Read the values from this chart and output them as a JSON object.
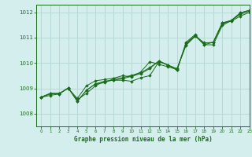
{
  "xlabel": "Graphe pression niveau de la mer (hPa)",
  "xlim": [
    -0.5,
    23
  ],
  "ylim": [
    1007.5,
    1012.3
  ],
  "yticks": [
    1008,
    1009,
    1010,
    1011,
    1012
  ],
  "xticks": [
    0,
    1,
    2,
    3,
    4,
    5,
    6,
    7,
    8,
    9,
    10,
    11,
    12,
    13,
    14,
    15,
    16,
    17,
    18,
    19,
    20,
    21,
    22,
    23
  ],
  "background_color": "#d4eeed",
  "grid_color": "#b8d8d5",
  "line_color": "#1a6b1a",
  "series": [
    [
      1008.65,
      1008.8,
      1008.8,
      1009.0,
      1008.55,
      1008.8,
      1009.1,
      1009.28,
      1009.32,
      1009.32,
      1009.28,
      1009.42,
      1009.5,
      1010.05,
      1009.92,
      1009.78,
      1010.7,
      1011.05,
      1010.8,
      1010.8,
      1011.55,
      1011.65,
      1011.85,
      1012.0
    ],
    [
      1008.65,
      1008.8,
      1008.8,
      1009.0,
      1008.6,
      1009.1,
      1009.3,
      1009.35,
      1009.4,
      1009.5,
      1009.45,
      1009.65,
      1010.05,
      1009.95,
      1009.85,
      1009.75,
      1010.72,
      1011.08,
      1010.72,
      1010.72,
      1011.48,
      1011.68,
      1011.92,
      1012.05
    ],
    [
      1008.65,
      1008.72,
      1008.78,
      1009.02,
      1008.5,
      1008.92,
      1009.18,
      1009.28,
      1009.32,
      1009.38,
      1009.48,
      1009.58,
      1009.78,
      1010.08,
      1009.92,
      1009.72,
      1010.78,
      1011.08,
      1010.78,
      1010.82,
      1011.58,
      1011.68,
      1011.98,
      1012.08
    ],
    [
      1008.65,
      1008.78,
      1008.78,
      1009.02,
      1008.48,
      1008.92,
      1009.18,
      1009.22,
      1009.38,
      1009.42,
      1009.52,
      1009.62,
      1009.82,
      1010.08,
      1009.92,
      1009.72,
      1010.82,
      1011.12,
      1010.72,
      1010.82,
      1011.58,
      1011.68,
      1011.98,
      1012.08
    ]
  ]
}
